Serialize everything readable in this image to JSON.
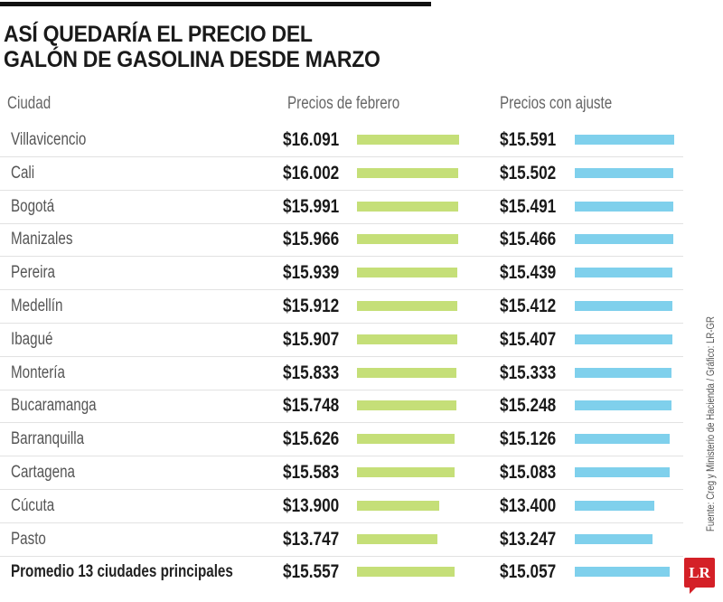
{
  "title_lines": [
    "ASÍ QUEDARÍA EL PRECIO DEL",
    "GALÓN DE GASOLINA DESDE MARZO"
  ],
  "source": "Fuente: Creg y Ministerio de Hacienda / Gráfico: LR-GR",
  "logo": "LR",
  "colors": {
    "february": "#c5df78",
    "adjusted": "#7fd0ec",
    "logo": "#d42027"
  },
  "chart_data": {
    "type": "table",
    "columns": [
      "Ciudad",
      "Precios de febrero",
      "Precios con ajuste"
    ],
    "rows": [
      {
        "city": "Villavicencio",
        "february": "$16.091",
        "adjusted": "$15.591",
        "feb_value": 16091,
        "adj_value": 15591
      },
      {
        "city": "Cali",
        "february": "$16.002",
        "adjusted": "$15.502",
        "feb_value": 16002,
        "adj_value": 15502
      },
      {
        "city": "Bogotá",
        "february": "$15.991",
        "adjusted": "$15.491",
        "feb_value": 15991,
        "adj_value": 15491
      },
      {
        "city": "Manizales",
        "february": "$15.966",
        "adjusted": "$15.466",
        "feb_value": 15966,
        "adj_value": 15466
      },
      {
        "city": "Pereira",
        "february": "$15.939",
        "adjusted": "$15.439",
        "feb_value": 15939,
        "adj_value": 15439
      },
      {
        "city": "Medellín",
        "february": "$15.912",
        "adjusted": "$15.412",
        "feb_value": 15912,
        "adj_value": 15412
      },
      {
        "city": "Ibagué",
        "february": "$15.907",
        "adjusted": "$15.407",
        "feb_value": 15907,
        "adj_value": 15407
      },
      {
        "city": "Montería",
        "february": "$15.833",
        "adjusted": "$15.333",
        "feb_value": 15833,
        "adj_value": 15333
      },
      {
        "city": "Bucaramanga",
        "february": "$15.748",
        "adjusted": "$15.248",
        "feb_value": 15748,
        "adj_value": 15248
      },
      {
        "city": "Barranquilla",
        "february": "$15.626",
        "adjusted": "$15.126",
        "feb_value": 15626,
        "adj_value": 15126
      },
      {
        "city": "Cartagena",
        "february": "$15.583",
        "adjusted": "$15.083",
        "feb_value": 15583,
        "adj_value": 15083
      },
      {
        "city": "Cúcuta",
        "february": "$13.900",
        "adjusted": "$13.400",
        "feb_value": 13900,
        "adj_value": 13400
      },
      {
        "city": "Pasto",
        "february": "$13.747",
        "adjusted": "$13.247",
        "feb_value": 13747,
        "adj_value": 13247
      },
      {
        "city": "Promedio 13 ciudades principales",
        "february": "$15.557",
        "adjusted": "$15.057",
        "feb_value": 15557,
        "adj_value": 15057
      }
    ]
  }
}
